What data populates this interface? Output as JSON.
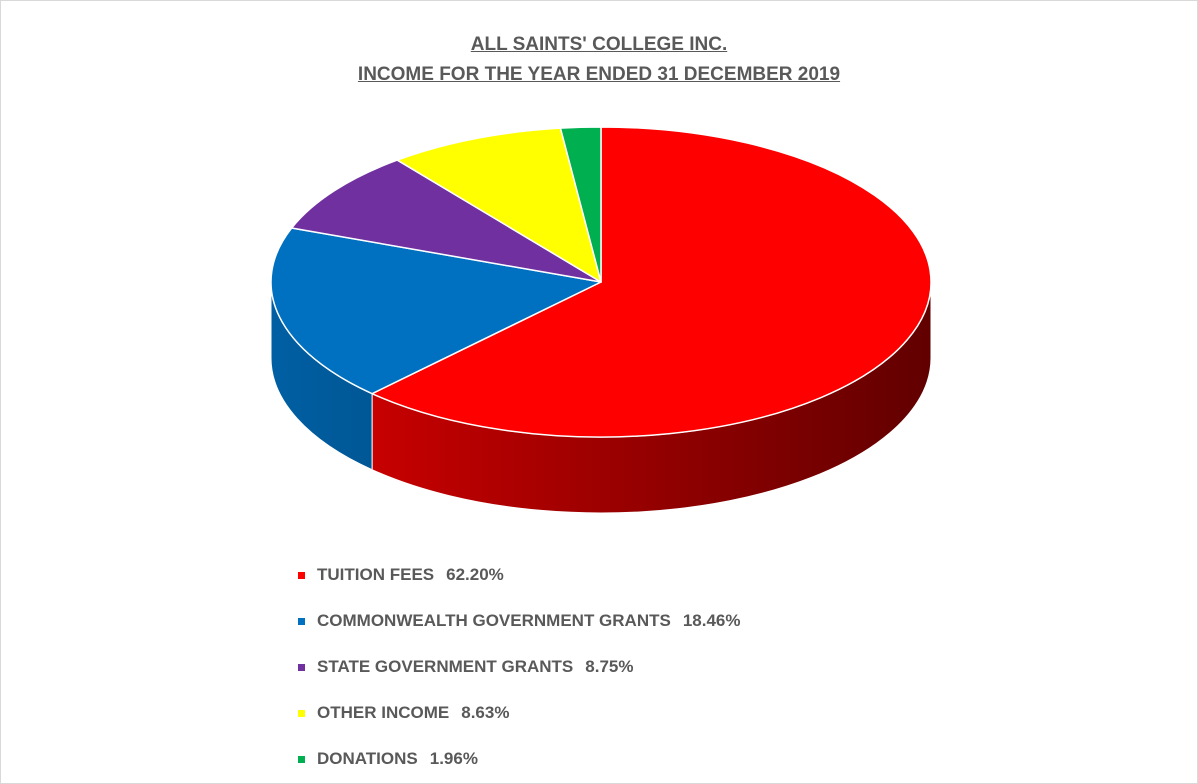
{
  "chart_data": {
    "type": "pie",
    "title": "ALL SAINTS' COLLEGE INC.",
    "subtitle": "INCOME FOR THE YEAR ENDED 31 DECEMBER 2019",
    "style": "3d",
    "legend_position": "bottom",
    "slices": [
      {
        "label": "TUITION FEES",
        "value": 62.2,
        "display": "62.20%",
        "color": "#ff0000"
      },
      {
        "label": "COMMONWEALTH GOVERNMENT GRANTS",
        "value": 18.46,
        "display": "18.46%",
        "color": "#0070c0"
      },
      {
        "label": "STATE GOVERNMENT GRANTS",
        "value": 8.75,
        "display": "8.75%",
        "color": "#7030a0"
      },
      {
        "label": "OTHER INCOME",
        "value": 8.63,
        "display": "8.63%",
        "color": "#ffff00"
      },
      {
        "label": "DONATIONS",
        "value": 1.96,
        "display": "1.96%",
        "color": "#00b050"
      }
    ]
  }
}
